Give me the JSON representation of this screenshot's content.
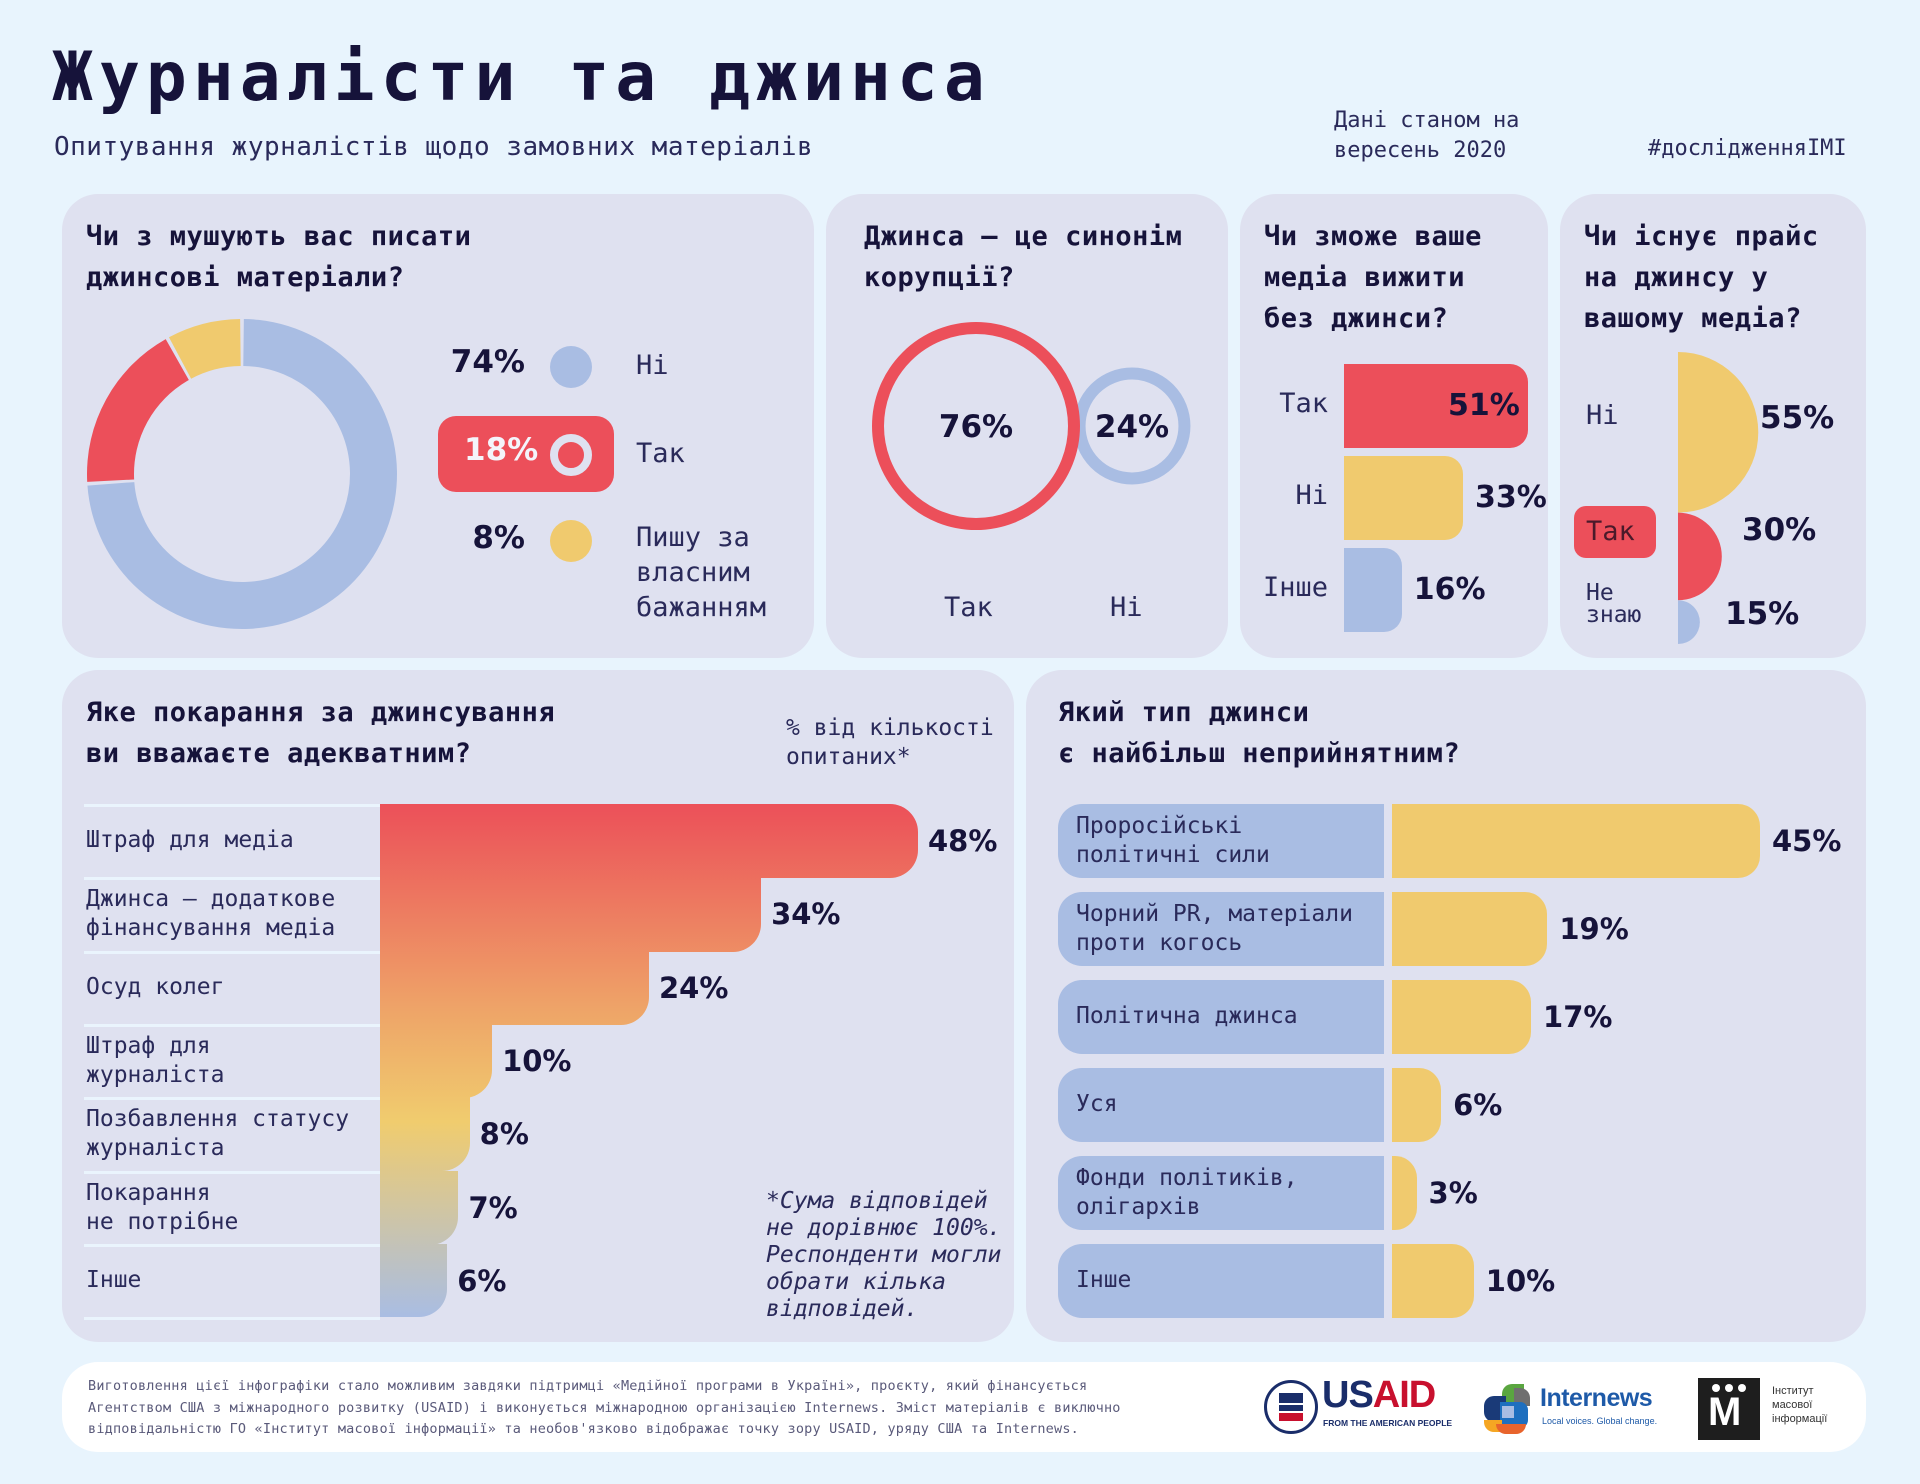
{
  "header": {
    "title": "Журналісти та джинса",
    "subtitle": "Опитування журналістів щодо замовних матеріалів",
    "date_line1": "Дані станом на",
    "date_line2": "вересень 2020",
    "hashtag": "#дослідженняIMI"
  },
  "colors": {
    "red": "#ec4f5a",
    "blue": "#a9bde3",
    "yellow": "#f0ca6e",
    "ink": "#16133a",
    "card": "#dfe1f0",
    "page": "#e8f4fd"
  },
  "chart_data": [
    {
      "id": "forced",
      "type": "pie",
      "title": "Чи з мушують вас писати джинсові матеріали?",
      "title_line1": "Чи з мушують вас писати",
      "title_line2": "джинсові матеріали?",
      "slices": [
        {
          "label": "Ні",
          "value": 74,
          "display": "74%",
          "color": "#a9bde3"
        },
        {
          "label": "Так",
          "value": 18,
          "display": "18%",
          "color": "#ec4f5a",
          "highlighted": true
        },
        {
          "label_lines": [
            "Пишу за",
            "власним",
            "бажанням"
          ],
          "label": "Пишу за власним бажанням",
          "value": 8,
          "display": "8%",
          "color": "#f0ca6e"
        }
      ]
    },
    {
      "id": "corruption",
      "type": "bubble",
      "title": "Джинса — це синонім корупції?",
      "title_line1": "Джинса — це синонім",
      "title_line2": "корупції?",
      "items": [
        {
          "label": "Так",
          "value": 76,
          "display": "76%",
          "color": "#ec4f5a"
        },
        {
          "label": "Ні",
          "value": 24,
          "display": "24%",
          "color": "#a9bde3"
        }
      ]
    },
    {
      "id": "survive",
      "type": "bar",
      "title": "Чи зможе ваше медіа вижити без джинси?",
      "title_lines": [
        "Чи зможе ваше",
        "медіа вижити",
        "без джинси?"
      ],
      "categories": [
        "Так",
        "Ні",
        "Інше"
      ],
      "values": [
        51,
        33,
        16
      ],
      "displays": [
        "51%",
        "33%",
        "16%"
      ],
      "colors": [
        "#ec4f5a",
        "#f0ca6e",
        "#a9bde3"
      ]
    },
    {
      "id": "price",
      "type": "bar",
      "title": "Чи існує прайс на джинсу у вашому медіа?",
      "title_lines": [
        "Чи існує прайс",
        "на джинсу у",
        "вашому медіа?"
      ],
      "categories": [
        "Ні",
        "Так",
        "Не знаю"
      ],
      "category_lines": [
        [
          "Ні"
        ],
        [
          "Так"
        ],
        [
          "Не",
          "знаю"
        ]
      ],
      "values": [
        55,
        30,
        15
      ],
      "displays": [
        "55%",
        "30%",
        "15%"
      ],
      "colors": [
        "#f0ca6e",
        "#ec4f5a",
        "#a9bde3"
      ]
    },
    {
      "id": "punishment",
      "type": "bar",
      "title": "Яке покарання за джинсування ви вважаєте адекватним?",
      "title_line1": "Яке покарання за джинсування",
      "title_line2": "ви вважаєте адекватним?",
      "unit_note_line1": "% від кількості",
      "unit_note_line2": "опитаних*",
      "categories": [
        "Штраф для медіа",
        "Джинса — додаткове фінансування медіа",
        "Осуд колег",
        "Штраф для журналіста",
        "Позбавлення статусу журналіста",
        "Покарання не потрібне",
        "Інше"
      ],
      "category_lines": [
        [
          "Штраф для медіа"
        ],
        [
          "Джинса — додаткове",
          "фінансування медіа"
        ],
        [
          "Осуд колег"
        ],
        [
          "Штраф для",
          "журналіста"
        ],
        [
          "Позбавлення статусу",
          "журналіста"
        ],
        [
          "Покарання",
          "не потрібне"
        ],
        [
          "Інше"
        ]
      ],
      "values": [
        48,
        34,
        24,
        10,
        8,
        7,
        6
      ],
      "displays": [
        "48%",
        "34%",
        "24%",
        "10%",
        "8%",
        "7%",
        "6%"
      ],
      "gradient": [
        "#ec5059",
        "#eea468",
        "#f0cc6e",
        "#a9bde3"
      ],
      "footnote_lines": [
        "*Сума відповідей",
        "не дорівнює 100%.",
        "Респонденти могли",
        "обрати кілька",
        "відповідей."
      ]
    },
    {
      "id": "type",
      "type": "bar",
      "title": "Який тип джинси є найбільш неприйнятним?",
      "title_line1": "Який тип джинси",
      "title_line2": "є найбільш неприйнятним?",
      "categories": [
        "Проросійські політичні сили",
        "Чорний PR, матеріали проти когось",
        "Політична джинса",
        "Уся",
        "Фонди політиків, олігархів",
        "Інше"
      ],
      "category_lines": [
        [
          "Проросійські",
          "політичні сили"
        ],
        [
          "Чорний PR, матеріали",
          "проти когось"
        ],
        [
          "Політична джинса"
        ],
        [
          "Уся"
        ],
        [
          "Фонди політиків,",
          "олігархів"
        ],
        [
          "Інше"
        ]
      ],
      "values": [
        45,
        19,
        17,
        6,
        3,
        10
      ],
      "displays": [
        "45%",
        "19%",
        "17%",
        "6%",
        "3%",
        "10%"
      ],
      "colors": {
        "label_bg": "#a9bde3",
        "bar": "#f0ca6e"
      }
    }
  ],
  "footer": {
    "text_line1": "Виготовлення цієї інфографіки стало можливим завдяки підтримці «Медійної програми в Україні», проєкту, який фінансується",
    "text_line2": "Агентством США з міжнародного розвитку (USAID) і виконується міжнародною організацією Internews. Зміст матеріалів є виключно",
    "text_line3": "відповідальністю ГО «Інститут масової інформації» та необов'язково відображає точку зору USAID, уряду США та Internews.",
    "logos": {
      "usaid_name": "USAID",
      "usaid_tagline": "FROM THE AMERICAN PEOPLE",
      "internews_name": "Internews",
      "internews_tagline": "Local voices. Global change.",
      "imi_letter": "M",
      "imi_line1": "Інститут",
      "imi_line2": "масової",
      "imi_line3": "інформації"
    }
  }
}
